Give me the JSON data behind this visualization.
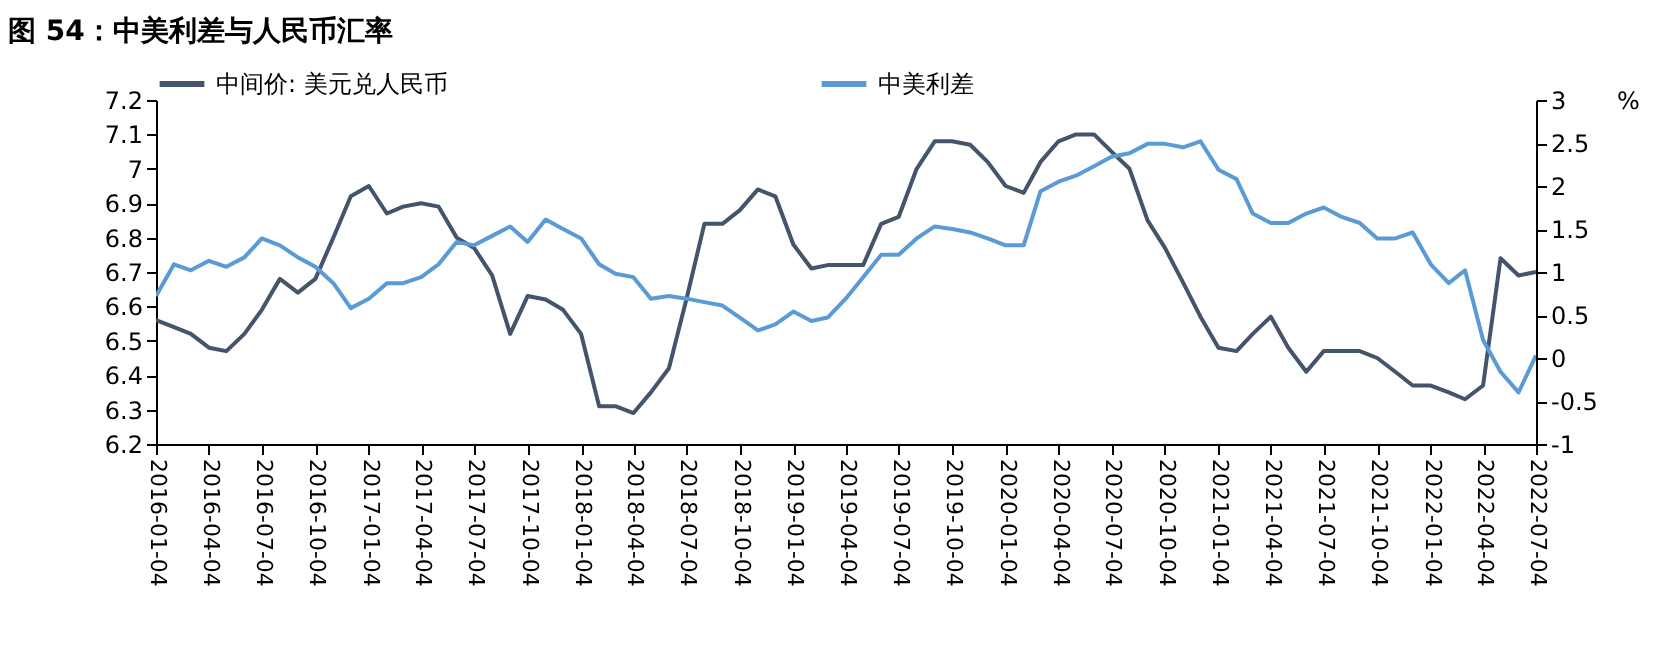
{
  "chart_data": {
    "type": "line",
    "title": "图 54：中美利差与人民币汇率",
    "y2label": "%",
    "x": [
      "2016-01-04",
      "2016-02-04",
      "2016-03-04",
      "2016-04-04",
      "2016-05-04",
      "2016-06-04",
      "2016-07-04",
      "2016-08-04",
      "2016-09-04",
      "2016-10-04",
      "2016-11-04",
      "2016-12-04",
      "2017-01-04",
      "2017-02-04",
      "2017-03-04",
      "2017-04-04",
      "2017-05-04",
      "2017-06-04",
      "2017-07-04",
      "2017-08-04",
      "2017-09-04",
      "2017-10-04",
      "2017-11-04",
      "2017-12-04",
      "2018-01-04",
      "2018-02-04",
      "2018-03-04",
      "2018-04-04",
      "2018-05-04",
      "2018-06-04",
      "2018-07-04",
      "2018-08-04",
      "2018-09-04",
      "2018-10-04",
      "2018-11-04",
      "2018-12-04",
      "2019-01-04",
      "2019-02-04",
      "2019-03-04",
      "2019-04-04",
      "2019-05-04",
      "2019-06-04",
      "2019-07-04",
      "2019-08-04",
      "2019-09-04",
      "2019-10-04",
      "2019-11-04",
      "2019-12-04",
      "2020-01-04",
      "2020-02-04",
      "2020-03-04",
      "2020-04-04",
      "2020-05-04",
      "2020-06-04",
      "2020-07-04",
      "2020-08-04",
      "2020-09-04",
      "2020-10-04",
      "2020-11-04",
      "2020-12-04",
      "2021-01-04",
      "2021-02-04",
      "2021-03-04",
      "2021-04-04",
      "2021-05-04",
      "2021-06-04",
      "2021-07-04",
      "2021-08-04",
      "2021-09-04",
      "2021-10-04",
      "2021-11-04",
      "2021-12-04",
      "2022-01-04",
      "2022-02-04",
      "2022-03-04",
      "2022-04-04",
      "2022-05-04",
      "2022-06-04",
      "2022-07-04"
    ],
    "series": [
      {
        "name": "中间价: 美元兑人民币",
        "color": "#44546a",
        "values": [
          6.56,
          6.54,
          6.52,
          6.48,
          6.47,
          6.52,
          6.59,
          6.68,
          6.64,
          6.68,
          6.8,
          6.92,
          6.95,
          6.87,
          6.89,
          6.9,
          6.89,
          6.8,
          6.77,
          6.69,
          6.52,
          6.63,
          6.62,
          6.59,
          6.52,
          6.31,
          6.31,
          6.29,
          6.35,
          6.42,
          6.62,
          6.84,
          6.84,
          6.88,
          6.94,
          6.92,
          6.78,
          6.71,
          6.72,
          6.72,
          6.72,
          6.84,
          6.86,
          7.0,
          7.08,
          7.08,
          7.07,
          7.02,
          6.95,
          6.93,
          7.02,
          7.08,
          7.1,
          7.1,
          7.05,
          7.0,
          6.85,
          6.77,
          6.67,
          6.57,
          6.48,
          6.47,
          6.52,
          6.57,
          6.48,
          6.41,
          6.47,
          6.47,
          6.47,
          6.45,
          6.41,
          6.37,
          6.37,
          6.35,
          6.33,
          6.37,
          6.74,
          6.69,
          6.7
        ]
      },
      {
        "name": "中美利差",
        "color": "#5b9bd5",
        "axis": "y2",
        "values": [
          0.72,
          1.09,
          1.02,
          1.13,
          1.06,
          1.17,
          1.39,
          1.31,
          1.17,
          1.06,
          0.87,
          0.58,
          0.69,
          0.87,
          0.87,
          0.94,
          1.09,
          1.35,
          1.31,
          1.42,
          1.53,
          1.35,
          1.61,
          1.5,
          1.39,
          1.09,
          0.98,
          0.94,
          0.69,
          0.72,
          0.69,
          0.65,
          0.61,
          0.47,
          0.32,
          0.39,
          0.54,
          0.43,
          0.47,
          0.69,
          0.94,
          1.2,
          1.2,
          1.39,
          1.53,
          1.5,
          1.46,
          1.39,
          1.31,
          1.31,
          1.94,
          2.05,
          2.12,
          2.23,
          2.34,
          2.38,
          2.49,
          2.49,
          2.45,
          2.52,
          2.19,
          2.08,
          1.68,
          1.57,
          1.57,
          1.68,
          1.75,
          1.64,
          1.57,
          1.39,
          1.39,
          1.46,
          1.09,
          0.87,
          1.02,
          0.21,
          -0.16,
          -0.4,
          0.03
        ]
      }
    ],
    "xlim": [
      "2016-01-04",
      "2022-07-04"
    ],
    "xticks": [
      "2016-01-04",
      "2016-04-04",
      "2016-07-04",
      "2016-10-04",
      "2017-01-04",
      "2017-04-04",
      "2017-07-04",
      "2017-10-04",
      "2018-01-04",
      "2018-04-04",
      "2018-07-04",
      "2018-10-04",
      "2019-01-04",
      "2019-04-04",
      "2019-07-04",
      "2019-10-04",
      "2020-01-04",
      "2020-04-04",
      "2020-07-04",
      "2020-10-04",
      "2021-01-04",
      "2021-04-04",
      "2021-07-04",
      "2021-10-04",
      "2022-01-04",
      "2022-04-04",
      "2022-07-04"
    ],
    "ylim": [
      6.2,
      7.2
    ],
    "yticks": [
      6.2,
      6.3,
      6.4,
      6.5,
      6.6,
      6.7,
      6.8,
      6.9,
      7,
      7.1,
      7.2
    ],
    "y2lim": [
      -1,
      3
    ],
    "y2ticks": [
      -1,
      -0.5,
      0,
      0.5,
      1,
      1.5,
      2,
      2.5,
      3
    ],
    "legend": "top",
    "grid": false,
    "marker": "none",
    "line_style": "solid"
  }
}
